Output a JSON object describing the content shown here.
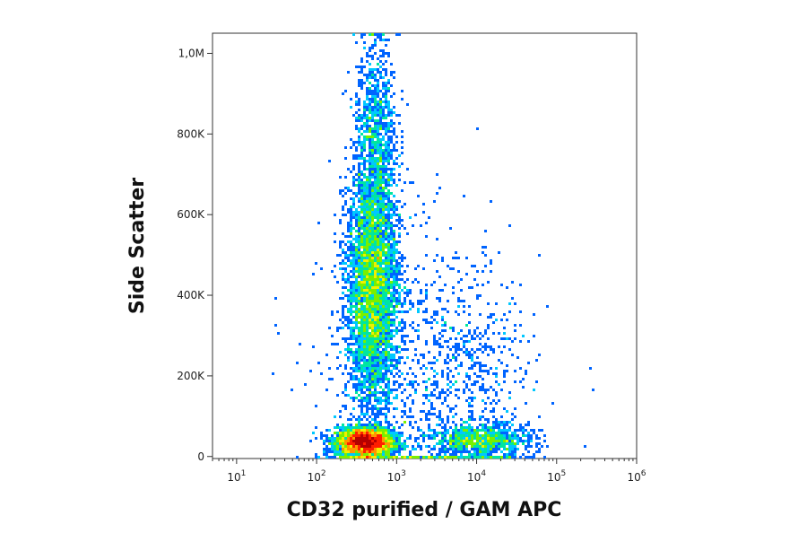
{
  "chart_data": {
    "type": "scatter",
    "title": "",
    "xlabel": "CD32 purified / GAM APC",
    "ylabel": "Side Scatter",
    "x_scale": "log",
    "xlim": [
      5,
      1000000
    ],
    "ylim": [
      -5000,
      1050000
    ],
    "x_ticks": [
      {
        "value": 10,
        "base": "10",
        "exp": "1"
      },
      {
        "value": 100,
        "base": "10",
        "exp": "2"
      },
      {
        "value": 1000,
        "base": "10",
        "exp": "3"
      },
      {
        "value": 10000,
        "base": "10",
        "exp": "4"
      },
      {
        "value": 100000,
        "base": "10",
        "exp": "5"
      },
      {
        "value": 1000000,
        "base": "10",
        "exp": "6"
      }
    ],
    "y_ticks": [
      {
        "value": 0,
        "label": "0"
      },
      {
        "value": 200000,
        "label": "200K"
      },
      {
        "value": 400000,
        "label": "400K"
      },
      {
        "value": 600000,
        "label": "600K"
      },
      {
        "value": 800000,
        "label": "800K"
      },
      {
        "value": 1000000,
        "label": "1,0M"
      }
    ],
    "grid": false,
    "legend": "none",
    "density_colormap": [
      "#0000c8",
      "#0064ff",
      "#00c8ff",
      "#00e6a0",
      "#78f000",
      "#f0f000",
      "#ff9600",
      "#ff1e00",
      "#b40000"
    ],
    "populations": [
      {
        "x_center": 400,
        "x_spread_decades": 0.18,
        "y_center": 35000,
        "y_spread": 18000,
        "count": 3200
      },
      {
        "x_center": 500,
        "x_spread_decades": 0.16,
        "y_center": 420000,
        "y_spread": 150000,
        "count": 4200
      },
      {
        "x_center": 550,
        "x_spread_decades": 0.13,
        "y_center": 800000,
        "y_spread": 120000,
        "count": 900
      },
      {
        "x_center": 12000,
        "x_spread_decades": 0.3,
        "y_center": 40000,
        "y_spread": 20000,
        "count": 900
      },
      {
        "x_center": 8000,
        "x_spread_decades": 0.4,
        "y_center": 200000,
        "y_spread": 130000,
        "count": 350
      },
      {
        "x_center": 2000,
        "x_spread_decades": 0.6,
        "y_center": 150000,
        "y_spread": 200000,
        "count": 900
      }
    ]
  }
}
